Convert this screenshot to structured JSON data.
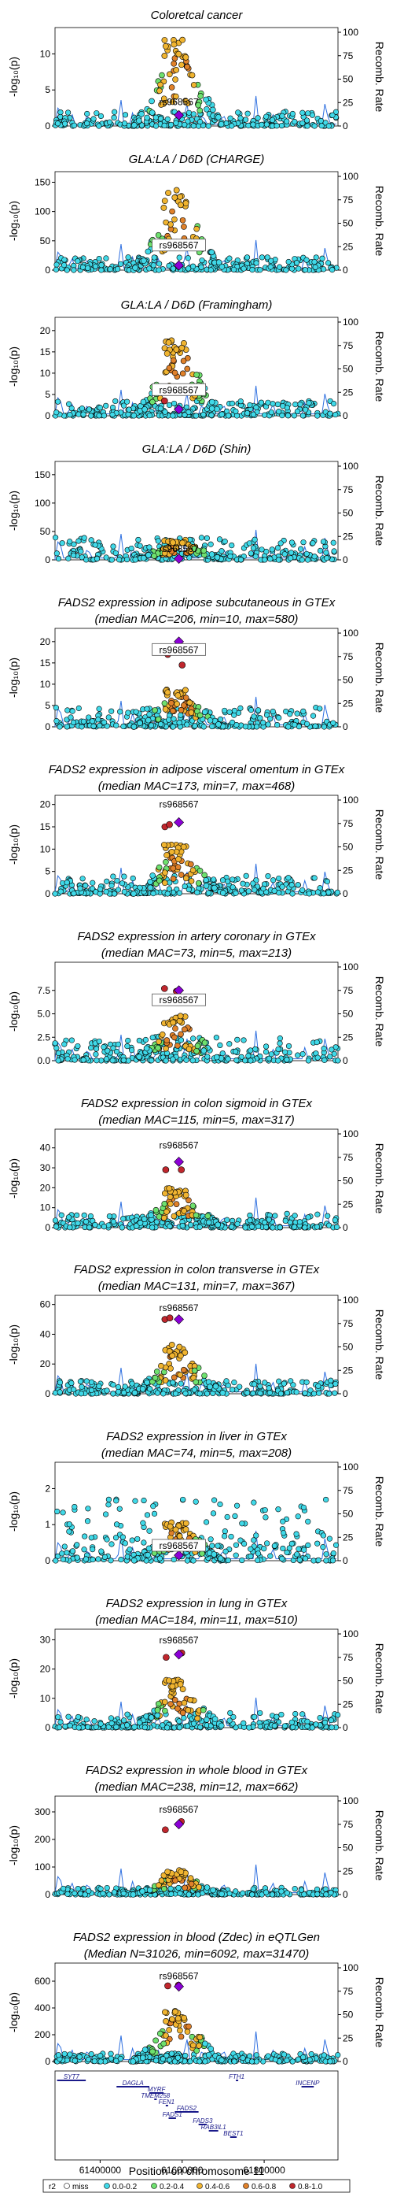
{
  "chart_data": {
    "type": "scatter",
    "lead_snp": "rs968567",
    "ylabel": "-log₁₀(p)",
    "ylabel_right": "Recomb. Rate",
    "xlabel": "Position on chromosome 11",
    "x_ticks": [
      "61400000",
      "61600000",
      "61800000"
    ],
    "xlim": [
      61290000,
      61980000
    ],
    "right_axis_ticks": [
      "0",
      "25",
      "50",
      "75",
      "100"
    ],
    "panels": [
      {
        "title": [
          "Coloretcal cancer"
        ],
        "yticks": [
          0,
          5,
          10
        ],
        "ymax": 13,
        "peak": 11,
        "lead_y": 1.5,
        "snp_label_y": 3.0,
        "boxed": false,
        "red": [],
        "ambient": 2.0
      },
      {
        "title": [
          "GLA:LA / D6D (CHARGE)"
        ],
        "yticks": [
          0,
          50,
          100,
          150
        ],
        "ymax": 160,
        "peak": 125,
        "lead_y": 8,
        "snp_label_y": 38,
        "boxed": true,
        "red": [],
        "ambient": 22
      },
      {
        "title": [
          "GLA:LA / D6D (Framingham)"
        ],
        "yticks": [
          0,
          5,
          10,
          15,
          20
        ],
        "ymax": 22,
        "peak": 17,
        "lead_y": 1.5,
        "snp_label_y": 5.5,
        "boxed": true,
        "red": [
          [
            61557000,
            3.5
          ]
        ],
        "ambient": 3.5
      },
      {
        "title": [
          "GLA:LA / D6D (Shin)"
        ],
        "yticks": [
          0,
          50,
          100,
          150
        ],
        "ymax": 165,
        "peak": 35,
        "lead_y": 2,
        "snp_label_y": 15,
        "boxed": false,
        "red": [],
        "ambient": 40
      },
      {
        "title": [
          "FADS2 expression in adipose subcutaneous in GTEx",
          "(median MAC=206, min=10, max=580)"
        ],
        "yticks": [
          0,
          5,
          10,
          15,
          20
        ],
        "ymax": 22,
        "peak": 8,
        "lead_y": 20,
        "snp_label_y": 17.5,
        "boxed": true,
        "red": [
          [
            61565000,
            17
          ],
          [
            61600000,
            14.5
          ]
        ],
        "ambient": 4.5
      },
      {
        "title": [
          "FADS2 expression in adipose visceral omentum in GTEx",
          "(median MAC=173, min=7, max=468)"
        ],
        "yticks": [
          0,
          5,
          10,
          15,
          20
        ],
        "ymax": 21,
        "peak": 10,
        "lead_y": 16,
        "snp_label_y": 19.5,
        "boxed": false,
        "red": [
          [
            61558000,
            15
          ],
          [
            61569000,
            15.5
          ]
        ],
        "ambient": 4
      },
      {
        "title": [
          "FADS2 expression in artery coronary in GTEx",
          "(median MAC=73, min=5, max=213)"
        ],
        "yticks": [
          0.0,
          2.5,
          5.0,
          7.5
        ],
        "ymax": 10,
        "peak": 4.5,
        "lead_y": 7.5,
        "snp_label_y": 6.2,
        "boxed": true,
        "red": [
          [
            61557000,
            7.7
          ],
          [
            61586000,
            7.4
          ]
        ],
        "ambient": 2.6
      },
      {
        "title": [
          "FADS2 expression in colon sigmoid in GTEx",
          "(median MAC=115, min=5, max=317)"
        ],
        "yticks": [
          0,
          10,
          20,
          30,
          40
        ],
        "ymax": 47,
        "peak": 18,
        "lead_y": 33,
        "snp_label_y": 40,
        "boxed": false,
        "red": [
          [
            61560000,
            29
          ],
          [
            61598000,
            29
          ]
        ],
        "ambient": 7
      },
      {
        "title": [
          "FADS2 expression in colon transverse in GTEx",
          "(median MAC=131, min=7, max=367)"
        ],
        "yticks": [
          0,
          20,
          40,
          60
        ],
        "ymax": 63,
        "peak": 30,
        "lead_y": 50,
        "snp_label_y": 56,
        "boxed": false,
        "red": [
          [
            61558000,
            50
          ],
          [
            61570000,
            51
          ]
        ],
        "ambient": 9
      },
      {
        "title": [
          "FADS2 expression in liver in GTEx",
          "(median MAC=74, min=5, max=208)"
        ],
        "yticks": [
          0,
          1,
          2
        ],
        "ymax": 2.6,
        "peak": 1.0,
        "lead_y": 0.15,
        "snp_label_y": 0.35,
        "boxed": true,
        "red": [],
        "ambient": 1.7
      },
      {
        "title": [
          "FADS2 expression in lung in GTEx",
          "(median MAC=184, min=11, max=510)"
        ],
        "yticks": [
          0,
          10,
          20,
          30
        ],
        "ymax": 32,
        "peak": 15,
        "lead_y": 25,
        "snp_label_y": 29,
        "boxed": false,
        "red": [
          [
            61561000,
            24
          ],
          [
            61599000,
            25.5
          ]
        ],
        "ambient": 5
      },
      {
        "title": [
          "FADS2 expression in whole blood in GTEx",
          "(median MAC=238, min=12, max=662)"
        ],
        "yticks": [
          0,
          100,
          200,
          300
        ],
        "ymax": 340,
        "peak": 80,
        "lead_y": 255,
        "snp_label_y": 300,
        "boxed": false,
        "red": [
          [
            61559000,
            235
          ],
          [
            61598000,
            265
          ]
        ],
        "ambient": 25
      },
      {
        "title": [
          "FADS2 expression in blood (Zdec) in eQTLGen",
          "(Median N=31026, min=6092, max=31470)"
        ],
        "yticks": [
          0,
          200,
          400,
          600
        ],
        "ymax": 700,
        "peak": 350,
        "lead_y": 560,
        "snp_label_y": 620,
        "boxed": false,
        "red": [
          [
            61565000,
            565
          ],
          [
            61591000,
            570
          ]
        ],
        "ambient": 60
      }
    ],
    "genes": [
      {
        "name": "SYT7",
        "start": 61295000,
        "end": 61365000,
        "row": 0
      },
      {
        "name": "DAGLA",
        "start": 61440000,
        "end": 61520000,
        "row": 1
      },
      {
        "name": "MYRF",
        "start": 61520000,
        "end": 61555000,
        "row": 2
      },
      {
        "name": "TMEM258",
        "start": 61532000,
        "end": 61538000,
        "row": 3
      },
      {
        "name": "FEN1",
        "start": 61560000,
        "end": 61564000,
        "row": 4
      },
      {
        "name": "FADS2",
        "start": 61582000,
        "end": 61640000,
        "row": 5
      },
      {
        "name": "FADS1",
        "start": 61567000,
        "end": 61585000,
        "row": 6
      },
      {
        "name": "FADS3",
        "start": 61640000,
        "end": 61660000,
        "row": 7
      },
      {
        "name": "RAB3IL1",
        "start": 61665000,
        "end": 61688000,
        "row": 8
      },
      {
        "name": "BEST1",
        "start": 61717000,
        "end": 61733000,
        "row": 9
      },
      {
        "name": "FTH1",
        "start": 61731000,
        "end": 61735000,
        "row": 0
      },
      {
        "name": "INCENP",
        "start": 61891000,
        "end": 61921000,
        "row": 1
      }
    ],
    "legend": {
      "title": "r2",
      "items": [
        {
          "label": "miss",
          "color": "#ffffff"
        },
        {
          "label": "0.0-0.2",
          "color": "#40d9e8"
        },
        {
          "label": "0.2-0.4",
          "color": "#6ee06e"
        },
        {
          "label": "0.4-0.6",
          "color": "#f0b430"
        },
        {
          "label": "0.6-0.8",
          "color": "#e0812a"
        },
        {
          "label": "0.8-1.0",
          "color": "#c0272d"
        }
      ]
    },
    "lead_color": "#8b00d6",
    "recomb_color": "#2e6fe0"
  }
}
